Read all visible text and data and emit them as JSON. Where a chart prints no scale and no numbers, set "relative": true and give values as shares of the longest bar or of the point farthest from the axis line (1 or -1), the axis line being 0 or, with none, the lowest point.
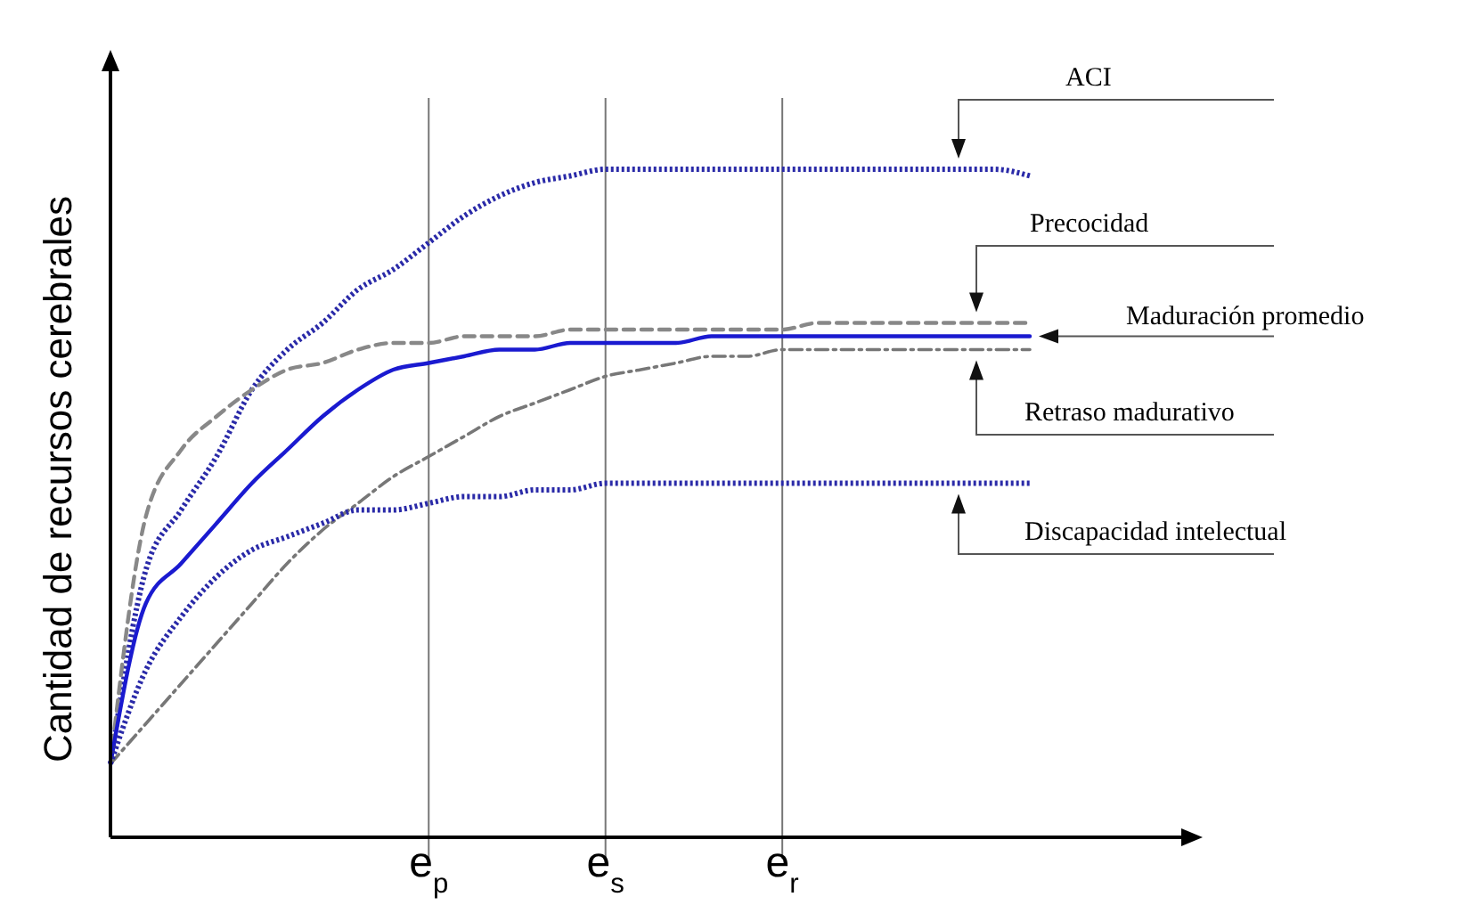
{
  "chart_data": {
    "type": "line",
    "relative": true,
    "ylabel": "Cantidad de recursos cerebrales",
    "legend": false,
    "grid": "x",
    "categories": [
      null,
      null,
      null,
      null,
      null,
      null,
      null,
      null,
      null,
      "e$_{p}$",
      null,
      null,
      null,
      null,
      "e$_{s}$",
      null,
      null,
      null,
      null,
      "e$_{r}$",
      null,
      null,
      null,
      null,
      null,
      null,
      null
    ],
    "series": [
      {
        "name": "ACI",
        "color": "#2a2aa8",
        "line_style": "dotted",
        "values": [
          0.11,
          0.4,
          0.49,
          0.57,
          0.67,
          0.73,
          0.77,
          0.82,
          0.85,
          0.89,
          0.93,
          0.96,
          0.98,
          0.99,
          1,
          1,
          1,
          1,
          1,
          1,
          1,
          1,
          1,
          1,
          1,
          1,
          0.99
        ]
      },
      {
        "name": "Precocidad",
        "color": "#888888",
        "line_style": "dashed",
        "values": [
          0.11,
          0.48,
          0.58,
          0.63,
          0.67,
          0.7,
          0.71,
          0.73,
          0.74,
          0.74,
          0.75,
          0.75,
          0.75,
          0.76,
          0.76,
          0.76,
          0.76,
          0.76,
          0.76,
          0.76,
          0.77,
          0.77,
          0.77,
          0.77,
          0.77,
          0.77,
          0.77
        ]
      },
      {
        "name": "Maduración promedio",
        "color": "#1a1ad0",
        "line_style": "solid",
        "values": [
          0.11,
          0.35,
          0.41,
          0.47,
          0.53,
          0.58,
          0.63,
          0.67,
          0.7,
          0.71,
          0.72,
          0.73,
          0.73,
          0.74,
          0.74,
          0.74,
          0.74,
          0.75,
          0.75,
          0.75,
          0.75,
          0.75,
          0.75,
          0.75,
          0.75,
          0.75,
          0.75
        ]
      },
      {
        "name": "Retraso madurativo",
        "color": "#777777",
        "line_style": "dashdot",
        "values": [
          0.11,
          0.17,
          0.23,
          0.29,
          0.35,
          0.41,
          0.46,
          0.5,
          0.54,
          0.57,
          0.6,
          0.63,
          0.65,
          0.67,
          0.69,
          0.7,
          0.71,
          0.72,
          0.72,
          0.73,
          0.73,
          0.73,
          0.73,
          0.73,
          0.73,
          0.73,
          0.73
        ]
      },
      {
        "name": "Discapacidad intelectual",
        "color": "#2a2aa8",
        "line_style": "dotted",
        "values": [
          0.11,
          0.25,
          0.33,
          0.39,
          0.43,
          0.45,
          0.47,
          0.49,
          0.49,
          0.5,
          0.51,
          0.51,
          0.52,
          0.52,
          0.53,
          0.53,
          0.53,
          0.53,
          0.53,
          0.53,
          0.53,
          0.53,
          0.53,
          0.53,
          0.53,
          0.53,
          0.53
        ]
      }
    ]
  }
}
